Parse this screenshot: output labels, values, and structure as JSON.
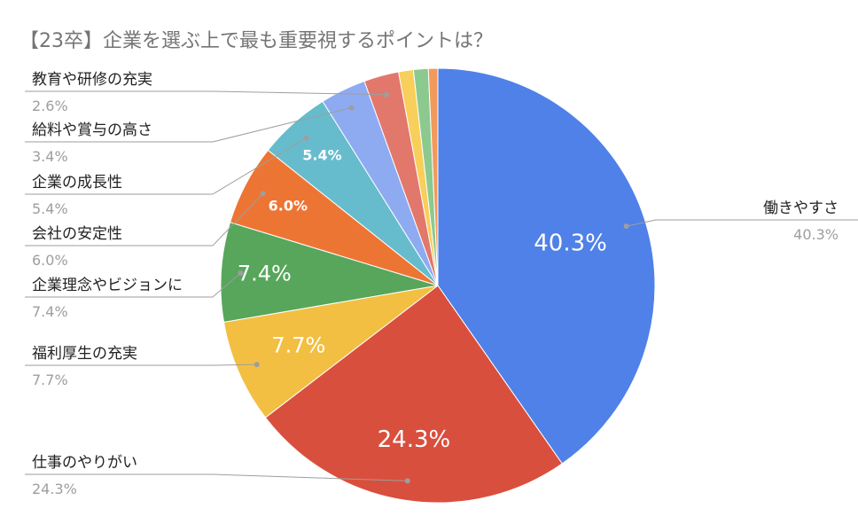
{
  "chart_data": {
    "type": "pie",
    "title": "【23卒】企業を選ぶ上で最も重要視するポイントは？",
    "legend": "none",
    "slices": [
      {
        "label": "働きやすさ",
        "value": 40.3,
        "display": "40.3%",
        "color": "#4f81e8"
      },
      {
        "label": "仕事のやりがい",
        "value": 24.3,
        "display": "24.3%",
        "color": "#d94f3d"
      },
      {
        "label": "福利厚生の充実",
        "value": 7.7,
        "display": "7.7%",
        "color": "#f2bf42"
      },
      {
        "label": "企業理念やビジョンに",
        "value": 7.4,
        "display": "7.4%",
        "color": "#57a65b"
      },
      {
        "label": "会社の安定性",
        "value": 6.0,
        "display": "6.0%",
        "color": "#ed7534"
      },
      {
        "label": "企業の成長性",
        "value": 5.4,
        "display": "5.4%",
        "color": "#66bccc"
      },
      {
        "label": "給料や賞与の高さ",
        "value": 3.4,
        "display": "3.4%",
        "color": "#8eabf2"
      },
      {
        "label": "教育や研修の充実",
        "value": 2.6,
        "display": "2.6%",
        "color": "#e2776c"
      },
      {
        "label": "",
        "value": 1.1,
        "display": "",
        "color": "#f7cf5a"
      },
      {
        "label": "",
        "value": 1.1,
        "display": "",
        "color": "#8cc98f"
      },
      {
        "label": "",
        "value": 0.7,
        "display": "",
        "color": "#f2995c"
      }
    ]
  }
}
